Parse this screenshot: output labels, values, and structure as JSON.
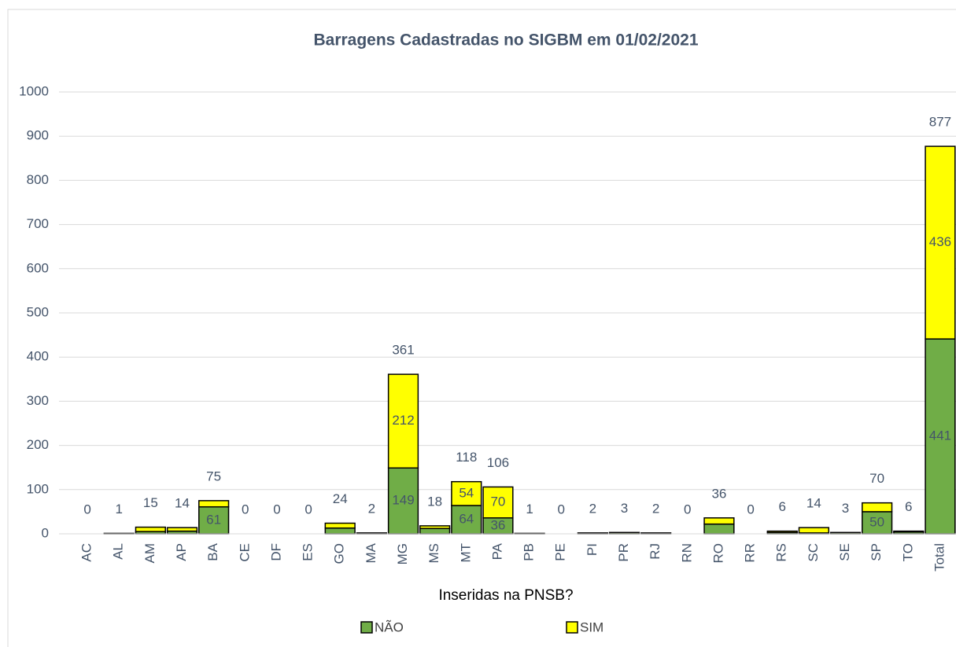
{
  "chart_data": {
    "type": "stacked_bar",
    "title": "Barragens Cadastradas no SIGBM em  01/02/2021",
    "xlabel": "Inseridas na PNSB?",
    "categories": [
      "AC",
      "AL",
      "AM",
      "AP",
      "BA",
      "CE",
      "DF",
      "ES",
      "GO",
      "MA",
      "MG",
      "MS",
      "MT",
      "PA",
      "PB",
      "PE",
      "PI",
      "PR",
      "RJ",
      "RN",
      "RO",
      "RR",
      "RS",
      "SC",
      "SE",
      "SP",
      "TO",
      "Total"
    ],
    "series": [
      {
        "name": "NÃO",
        "color": "#70ad47",
        "values": [
          0,
          1,
          5,
          6,
          61,
          0,
          0,
          0,
          13,
          2,
          149,
          12,
          64,
          36,
          1,
          0,
          2,
          3,
          2,
          0,
          22,
          0,
          3,
          2,
          3,
          50,
          4,
          441
        ]
      },
      {
        "name": "SIM",
        "color": "#ffff00",
        "values": [
          0,
          0,
          10,
          8,
          14,
          0,
          0,
          0,
          11,
          0,
          212,
          6,
          54,
          70,
          0,
          0,
          0,
          0,
          0,
          0,
          14,
          0,
          3,
          12,
          0,
          20,
          2,
          436
        ]
      }
    ],
    "totals": [
      0,
      1,
      15,
      14,
      75,
      0,
      0,
      0,
      24,
      2,
      361,
      18,
      118,
      106,
      1,
      0,
      2,
      3,
      2,
      0,
      36,
      0,
      6,
      14,
      3,
      70,
      6,
      877
    ],
    "ylim": [
      0,
      1000
    ],
    "yticks": [
      0,
      100,
      200,
      300,
      400,
      500,
      600,
      700,
      800,
      900,
      1000
    ],
    "grid": true,
    "legend": "bottom"
  }
}
